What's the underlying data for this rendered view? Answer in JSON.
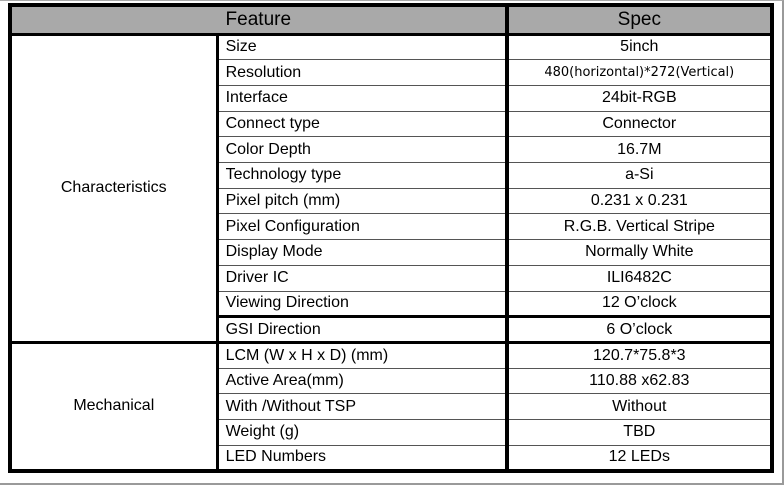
{
  "colors": {
    "header_bg": "#a9a9a9",
    "outer_border": "#000000",
    "row_separator": "#555555",
    "text": "#000000",
    "page_edge": "#9a9a9a"
  },
  "header": {
    "feature_label": "Feature",
    "spec_label": "Spec"
  },
  "groups": [
    {
      "label": "Characteristics",
      "rows": [
        {
          "feature": "Size",
          "spec": "5inch"
        },
        {
          "feature": "Resolution",
          "spec": "480(horizontal)*272(Vertical)"
        },
        {
          "feature": "Interface",
          "spec": "24bit-RGB"
        },
        {
          "feature": "Connect type",
          "spec": "Connector"
        },
        {
          "feature": "Color Depth",
          "spec": "16.7M"
        },
        {
          "feature": "Technology type",
          "spec": "a-Si"
        },
        {
          "feature": "Pixel pitch (mm)",
          "spec": "0.231 x 0.231"
        },
        {
          "feature": "Pixel Configuration",
          "spec": "R.G.B. Vertical Stripe"
        },
        {
          "feature": "Display Mode",
          "spec": "Normally White"
        },
        {
          "feature": "Driver IC",
          "spec": "ILI6482C"
        },
        {
          "feature": "Viewing Direction",
          "spec": "12 O’clock"
        },
        {
          "feature": "GSI Direction",
          "spec": "6 O’clock"
        }
      ]
    },
    {
      "label": "Mechanical",
      "rows": [
        {
          "feature": "LCM (W x H x D) (mm)",
          "spec": "120.7*75.8*3"
        },
        {
          "feature": "Active Area(mm)",
          "spec": "110.88 x62.83"
        },
        {
          "feature": "With /Without TSP",
          "spec": "Without"
        },
        {
          "feature": "Weight (g)",
          "spec": "TBD"
        },
        {
          "feature": "LED Numbers",
          "spec": "12 LEDs"
        }
      ]
    }
  ]
}
